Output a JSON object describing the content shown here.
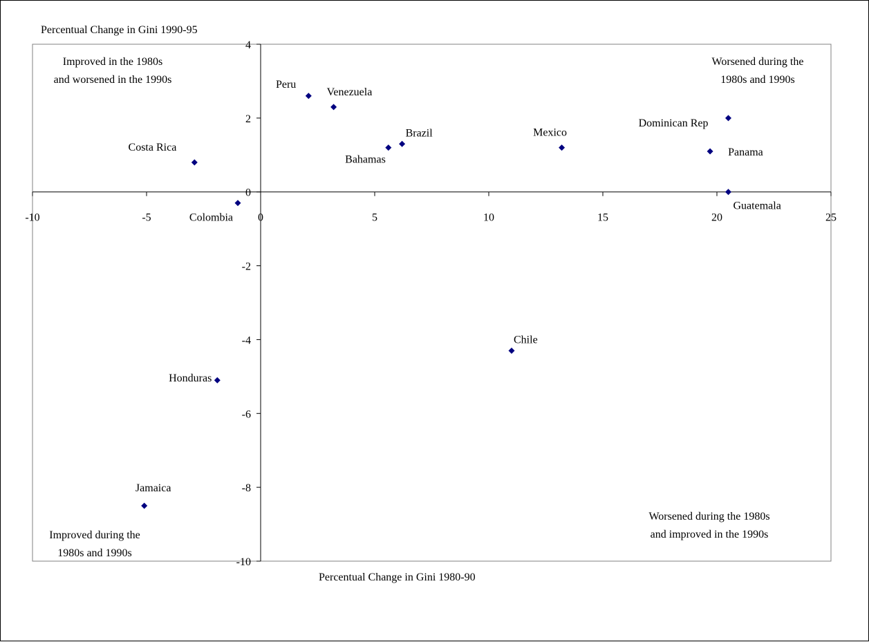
{
  "chart_data": {
    "type": "scatter",
    "title": "",
    "xlabel": "Percentual Change in Gini 1980-90",
    "ylabel": "Percentual Change in Gini 1990-95",
    "xlim": [
      -10,
      25
    ],
    "ylim": [
      -10,
      4
    ],
    "x_ticks": [
      -10,
      -5,
      0,
      5,
      10,
      15,
      20,
      25
    ],
    "y_ticks": [
      4,
      2,
      0,
      -2,
      -4,
      -6,
      -8,
      -10
    ],
    "grid": false,
    "legend": "none",
    "marker_color": "#000080",
    "points": [
      {
        "label": "Peru",
        "x": 2.1,
        "y": 2.6
      },
      {
        "label": "Venezuela",
        "x": 3.2,
        "y": 2.3
      },
      {
        "label": "Brazil",
        "x": 6.2,
        "y": 1.3
      },
      {
        "label": "Bahamas",
        "x": 5.6,
        "y": 1.2
      },
      {
        "label": "Mexico",
        "x": 13.2,
        "y": 1.2
      },
      {
        "label": "Dominican Rep",
        "x": 20.5,
        "y": 2.0
      },
      {
        "label": "Panama",
        "x": 19.7,
        "y": 1.1
      },
      {
        "label": "Guatemala",
        "x": 20.5,
        "y": 0.0
      },
      {
        "label": "Costa Rica",
        "x": -2.9,
        "y": 0.8
      },
      {
        "label": "Colombia",
        "x": -1.0,
        "y": -0.3
      },
      {
        "label": "Chile",
        "x": 11.0,
        "y": -4.3
      },
      {
        "label": "Honduras",
        "x": -1.9,
        "y": -5.1
      },
      {
        "label": "Jamaica",
        "x": -5.1,
        "y": -8.5
      }
    ],
    "annotations": [
      {
        "key": "top-left",
        "lines": [
          "Improved in the 1980s",
          "and worsened in the 1990s"
        ]
      },
      {
        "key": "top-right",
        "lines": [
          "Worsened during the",
          "1980s and 1990s"
        ]
      },
      {
        "key": "bottom-left",
        "lines": [
          "Improved during the",
          "1980s and 1990s"
        ]
      },
      {
        "key": "bottom-right",
        "lines": [
          "Worsened during the 1980s",
          "and improved in the 1990s"
        ]
      }
    ]
  }
}
